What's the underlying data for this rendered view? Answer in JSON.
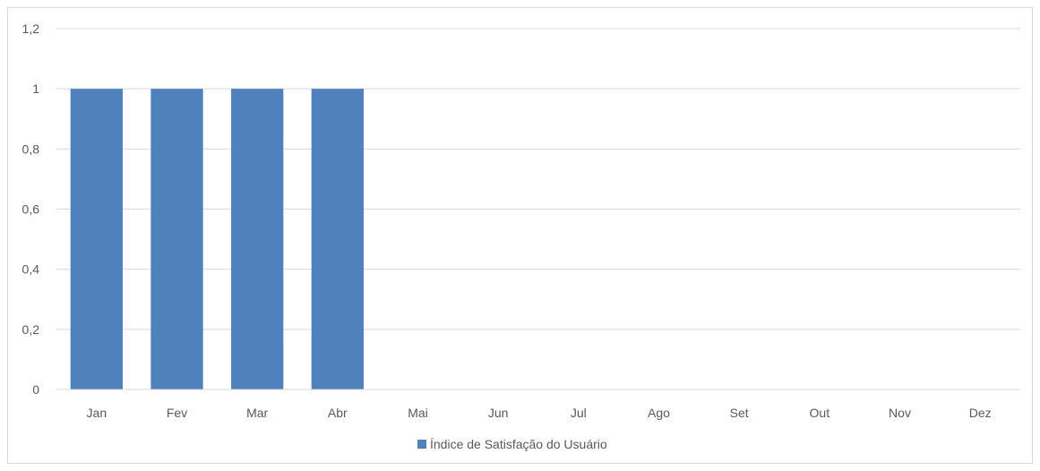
{
  "chart_data": {
    "type": "bar",
    "title": "",
    "xlabel": "",
    "ylabel": "",
    "categories": [
      "Jan",
      "Fev",
      "Mar",
      "Abr",
      "Mai",
      "Jun",
      "Jul",
      "Ago",
      "Set",
      "Out",
      "Nov",
      "Dez"
    ],
    "series": [
      {
        "name": "Índice de Satisfação do Usuário",
        "values": [
          1,
          1,
          1,
          1,
          null,
          null,
          null,
          null,
          null,
          null,
          null,
          null
        ],
        "color": "#4f81bd"
      }
    ],
    "ylim": [
      0,
      1.2
    ],
    "yticks": [
      0,
      0.2,
      0.4,
      0.6,
      0.8,
      1,
      1.2
    ],
    "ytick_labels": [
      "0",
      "0,2",
      "0,4",
      "0,6",
      "0,8",
      "1",
      "1,2"
    ],
    "grid": true,
    "legend_position": "bottom",
    "gridline_color": "#d9d9d9",
    "tick_color": "#595959"
  }
}
